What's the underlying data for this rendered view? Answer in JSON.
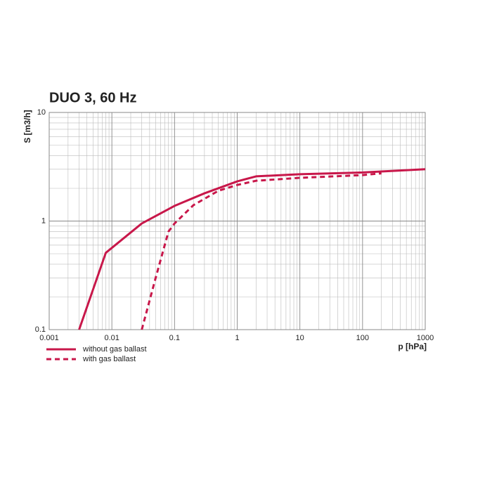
{
  "chart_data": {
    "type": "line",
    "title": "DUO 3, 60 Hz",
    "x_label": "p [hPa]",
    "y_label": "S [m3/h]",
    "log_x": true,
    "log_y": true,
    "grid": true,
    "minor_grid": true,
    "xlim": [
      0.001,
      1000
    ],
    "xticks": [
      0.001,
      0.01,
      0.1,
      1,
      10,
      100,
      1000
    ],
    "ylim": [
      0.1,
      10
    ],
    "yticks": [
      0.1,
      1,
      10
    ],
    "series": [
      {
        "name": "without gas ballast",
        "color": "#c8174a",
        "style": "solid",
        "x": [
          0.003,
          0.008,
          0.03,
          0.1,
          0.3,
          1,
          2,
          10,
          100,
          1000
        ],
        "values": [
          0.1,
          0.51,
          0.95,
          1.38,
          1.8,
          2.32,
          2.58,
          2.7,
          2.8,
          3.0
        ]
      },
      {
        "name": "with gas ballast",
        "color": "#c8174a",
        "style": "dashed",
        "x": [
          0.03,
          0.05,
          0.08,
          0.1,
          0.2,
          0.5,
          1,
          2,
          10,
          100,
          200
        ],
        "values": [
          0.1,
          0.3,
          0.8,
          0.95,
          1.4,
          1.9,
          2.15,
          2.35,
          2.5,
          2.65,
          2.75
        ]
      }
    ]
  }
}
